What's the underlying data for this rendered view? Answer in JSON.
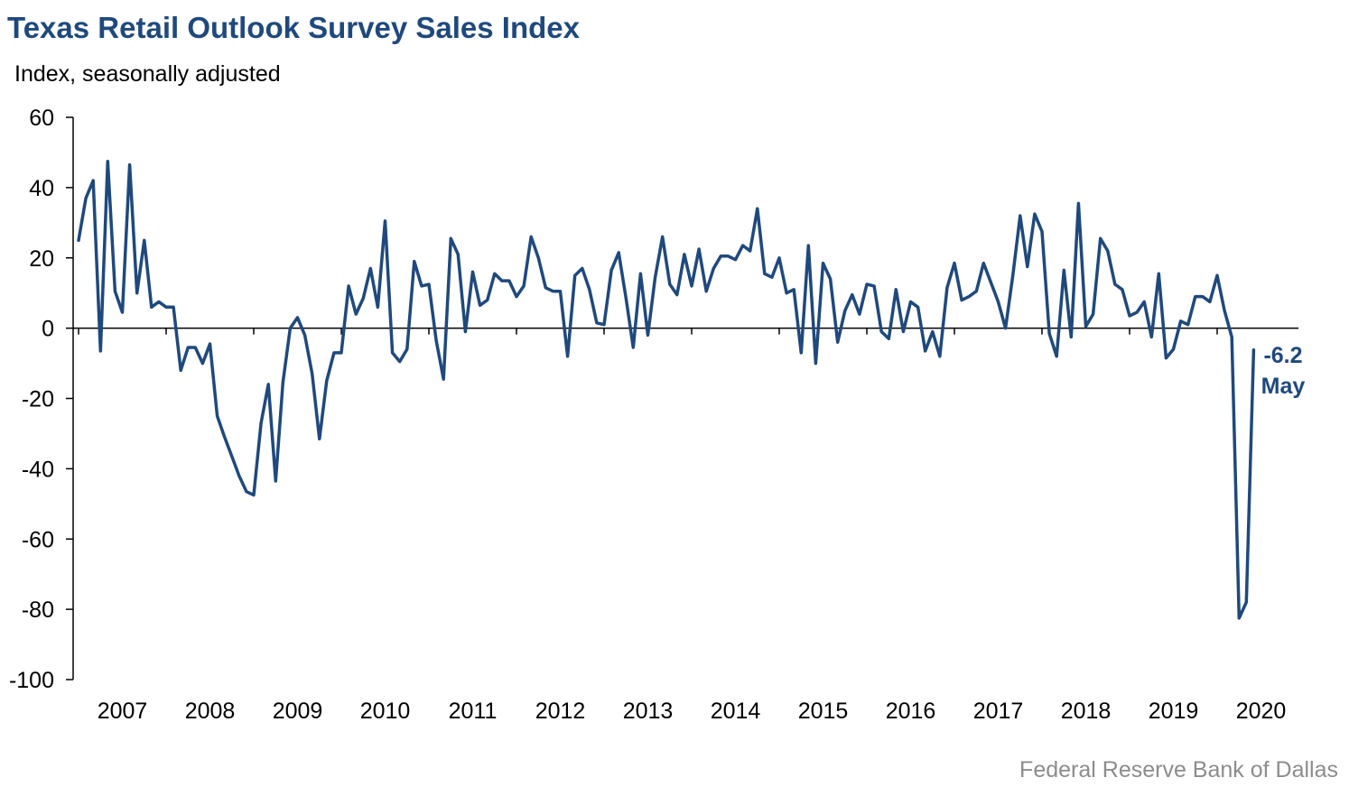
{
  "chart_data": {
    "type": "line",
    "title": "Texas Retail Outlook Survey Sales Index",
    "subtitle": "Index, seasonally adjusted",
    "source": "Federal Reserve Bank of Dallas",
    "ylim": [
      -100,
      60
    ],
    "yticks": [
      60,
      40,
      20,
      0,
      -20,
      -40,
      -60,
      -80,
      -100
    ],
    "xticks": [
      "2007",
      "2008",
      "2009",
      "2010",
      "2011",
      "2012",
      "2013",
      "2014",
      "2015",
      "2016",
      "2017",
      "2018",
      "2019",
      "2020"
    ],
    "x_start": "2007-01",
    "grid": false,
    "color": "#1f497d",
    "annotation": {
      "value": "-6.2",
      "label": "May"
    },
    "series": [
      {
        "name": "",
        "values": [
          25,
          37,
          42,
          -6.5,
          47.5,
          10.5,
          4.5,
          46.5,
          10,
          25,
          6,
          7.5,
          6,
          6,
          -12,
          -5.5,
          -5.5,
          -10,
          -4.5,
          -25,
          -31,
          -36.5,
          -42,
          -46.5,
          -47.5,
          -27,
          -16,
          -43.5,
          -15.5,
          0,
          3,
          -2,
          -13,
          -31.5,
          -15,
          -7,
          -7,
          12,
          4,
          8.5,
          17,
          6,
          30.5,
          -7,
          -9.5,
          -6,
          19,
          12,
          12.5,
          -3.5,
          -14.5,
          25.5,
          21,
          -1,
          16,
          6.5,
          8,
          15.5,
          13.5,
          13.5,
          9,
          12,
          26,
          20,
          11.5,
          10.5,
          10.5,
          -8,
          15,
          17,
          11,
          1.5,
          1,
          16.5,
          21.5,
          8.5,
          -5.5,
          15.5,
          -2,
          14.5,
          26,
          12.5,
          9.5,
          21,
          12,
          22.5,
          10.5,
          17,
          20.5,
          20.5,
          19.5,
          23.5,
          22,
          34,
          15.5,
          14.5,
          20,
          10,
          11,
          -7,
          23.5,
          -10,
          18.5,
          14,
          -4,
          5,
          9.5,
          4,
          12.5,
          12,
          -1,
          -3,
          11,
          -1,
          7.5,
          6,
          -6.5,
          -1,
          -8,
          11.5,
          18.5,
          8,
          9,
          10.5,
          18.5,
          13,
          7.5,
          0,
          15,
          32,
          17.5,
          32.5,
          27.5,
          -1.5,
          -8,
          16.5,
          -2.5,
          35.5,
          0.5,
          4,
          25.5,
          22,
          12.5,
          11,
          3.5,
          4.5,
          7.5,
          -2.5,
          15.5,
          -8.5,
          -6,
          2,
          1,
          9,
          9,
          7.5,
          15,
          5,
          -2.5,
          -82.5,
          -78,
          -6.2
        ]
      }
    ]
  }
}
